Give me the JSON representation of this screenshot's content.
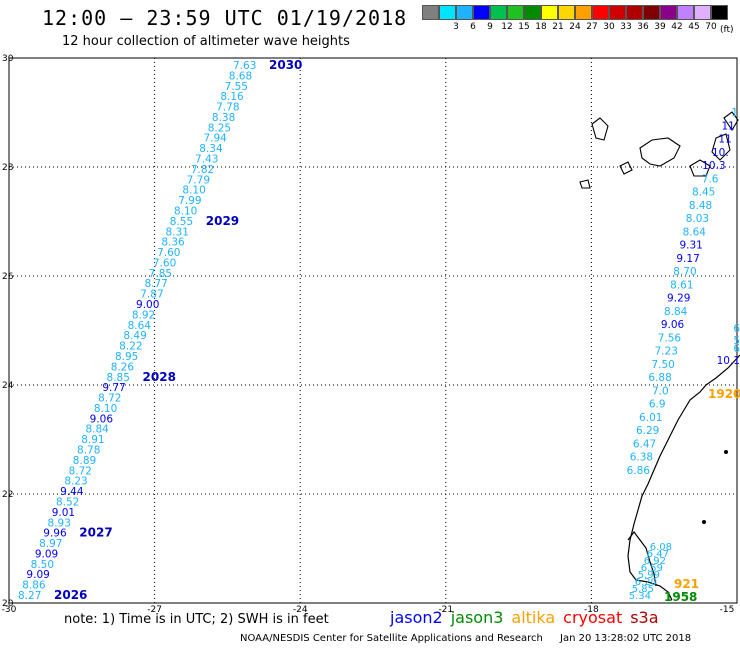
{
  "header": {
    "title": "12:00 – 23:59 UTC 01/19/2018",
    "subtitle": "12 hour collection of altimeter wave heights"
  },
  "legend": {
    "unit": "(ft)",
    "levels": [
      {
        "label": "",
        "color": "#7f7f7f"
      },
      {
        "label": "3",
        "color": "#00e5ff"
      },
      {
        "label": "6",
        "color": "#1fb3ff"
      },
      {
        "label": "9",
        "color": "#0000ff"
      },
      {
        "label": "12",
        "color": "#00c04f"
      },
      {
        "label": "15",
        "color": "#20c020"
      },
      {
        "label": "18",
        "color": "#008b00"
      },
      {
        "label": "21",
        "color": "#ffff00"
      },
      {
        "label": "24",
        "color": "#ffd700"
      },
      {
        "label": "27",
        "color": "#ff9f00"
      },
      {
        "label": "30",
        "color": "#ff0000"
      },
      {
        "label": "33",
        "color": "#d00000"
      },
      {
        "label": "36",
        "color": "#b00000"
      },
      {
        "label": "39",
        "color": "#800000"
      },
      {
        "label": "42",
        "color": "#8b008b"
      },
      {
        "label": "45",
        "color": "#c080ff"
      },
      {
        "label": "70",
        "color": "#e0b0ff"
      },
      {
        "label": "",
        "color": "#000000"
      }
    ]
  },
  "map": {
    "lon_ticks": [
      "-30",
      "-27",
      "-24",
      "-21",
      "-18",
      "-15"
    ],
    "lat_ticks": [
      "30",
      "28",
      "26",
      "24",
      "22",
      "20"
    ],
    "lat_tick_values": [
      30,
      28,
      26,
      24,
      22,
      20
    ],
    "lon_tick_values": [
      -30,
      -27,
      -24,
      -21,
      -18,
      -15
    ],
    "left_track": {
      "heights": [
        "7.63",
        "8.68",
        "7.55",
        "8.16",
        "7.78",
        "8.38",
        "8.25",
        "7.94",
        "8.34",
        "7.43",
        "7.82",
        "7.79",
        "8.10",
        "7.99",
        "8.10",
        "8.55",
        "8.31",
        "8.36",
        "7.60",
        "7.60",
        "7.85",
        "8.77",
        "7.87",
        "9.00",
        "8.92",
        "8.64",
        "8.49",
        "8.22",
        "8.95",
        "8.26",
        "8.85",
        "9.77",
        "8.72",
        "8.10",
        "9.06",
        "8.84",
        "8.91",
        "8.78",
        "8.89",
        "8.72",
        "8.23",
        "9.44",
        "8.52",
        "9.01",
        "8.93",
        "9.96",
        "8.97",
        "9.09",
        "8.50",
        "9.09",
        "8.86",
        "8.27"
      ],
      "times": [
        {
          "text": "2030",
          "index": 0
        },
        {
          "text": "2029",
          "index": 15
        },
        {
          "text": "2028",
          "index": 30
        },
        {
          "text": "2027",
          "index": 45
        },
        {
          "text": "2026",
          "index": 51
        }
      ]
    },
    "right_track": {
      "heights": [
        "1",
        "11",
        "11",
        "10.",
        "10.3",
        "7.6",
        "8.45",
        "8.48",
        "8.03",
        "8.64",
        "9.31",
        "9.17",
        "8.70",
        "8.61",
        "9.29",
        "8.84",
        "9.06",
        "7.56",
        "7.23",
        "7.50",
        "6.88",
        "7.0",
        "6.9",
        "6.01",
        "6.29",
        "6.47",
        "6.38",
        "6.86"
      ]
    },
    "coastal_heights": [
      "6.08",
      "6.47",
      "6.92",
      "6.59",
      "5.99",
      "6.20",
      "5.85",
      "5.34"
    ],
    "right_edge_heights": [
      "6",
      "5",
      "6",
      "10.1"
    ],
    "pass_times": [
      {
        "text": "1920",
        "color": "#ff9f00"
      },
      {
        "text": "921",
        "color": "#ff9f00"
      },
      {
        "text": "1958",
        "color": "#008b00"
      }
    ]
  },
  "footer": {
    "note": "note: 1) Time is in UTC; 2) SWH is in feet",
    "satellites": [
      {
        "name": "jason2",
        "color": "#0000ff"
      },
      {
        "name": "jason3",
        "color": "#008b00"
      },
      {
        "name": "altika",
        "color": "#ff9f00"
      },
      {
        "name": "cryosat",
        "color": "#ff0000"
      },
      {
        "name": "s3a",
        "color": "#b00000"
      }
    ],
    "credit": "NOAA/NESDIS Center for Satellite Applications and Research",
    "timestamp": "Jan 20 13:28:02 UTC 2018"
  }
}
